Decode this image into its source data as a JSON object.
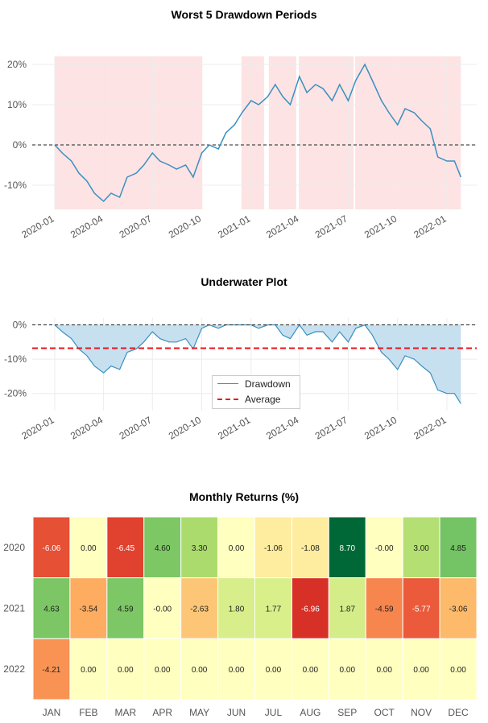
{
  "chart_data": [
    {
      "type": "line",
      "title": "Worst 5 Drawdown Periods",
      "ylim": [
        -16,
        22
      ],
      "yticks": [
        -10,
        0,
        10,
        20
      ],
      "ytick_labels": [
        "-10%",
        "0%",
        "10%",
        "20%"
      ],
      "xtick_labels": [
        "2020-01",
        "2020-04",
        "2020-07",
        "2020-10",
        "2021-01",
        "2021-04",
        "2021-07",
        "2021-10",
        "2022-01"
      ],
      "xticks": [
        "2020-01-01",
        "2020-04-01",
        "2020-07-01",
        "2020-10-01",
        "2021-01-01",
        "2021-04-01",
        "2021-07-01",
        "2021-10-01",
        "2022-01-01"
      ],
      "grid": true,
      "line_color": "#3a8fc1",
      "shade_color": "#fde3e3",
      "reference_line": 0,
      "drawdown_periods": [
        [
          "2020-01-01",
          "2020-10-02"
        ],
        [
          "2020-12-14",
          "2021-01-25"
        ],
        [
          "2021-02-03",
          "2021-03-26"
        ],
        [
          "2021-03-31",
          "2021-07-11"
        ],
        [
          "2021-07-14",
          "2022-01-27"
        ]
      ],
      "x": [
        "2020-01-01",
        "2020-01-15",
        "2020-02-01",
        "2020-02-15",
        "2020-03-01",
        "2020-03-15",
        "2020-04-01",
        "2020-04-15",
        "2020-05-01",
        "2020-05-15",
        "2020-06-01",
        "2020-06-15",
        "2020-07-01",
        "2020-07-15",
        "2020-08-01",
        "2020-08-15",
        "2020-09-01",
        "2020-09-15",
        "2020-10-01",
        "2020-10-15",
        "2020-11-01",
        "2020-11-15",
        "2020-12-01",
        "2020-12-15",
        "2021-01-01",
        "2021-01-15",
        "2021-02-01",
        "2021-02-15",
        "2021-03-01",
        "2021-03-15",
        "2021-04-01",
        "2021-04-15",
        "2021-05-01",
        "2021-05-15",
        "2021-06-01",
        "2021-06-15",
        "2021-07-01",
        "2021-07-15",
        "2021-08-01",
        "2021-08-15",
        "2021-09-01",
        "2021-09-15",
        "2021-10-01",
        "2021-10-15",
        "2021-11-01",
        "2021-11-15",
        "2021-12-01",
        "2021-12-15",
        "2022-01-01",
        "2022-01-15",
        "2022-01-27"
      ],
      "values": [
        0,
        -2,
        -4,
        -7,
        -9,
        -12,
        -14,
        -12,
        -13,
        -8,
        -7,
        -5,
        -2,
        -4,
        -5,
        -6,
        -5,
        -8,
        -2,
        0,
        -1,
        3,
        5,
        8,
        11,
        10,
        12,
        15,
        12,
        10,
        17,
        13,
        15,
        14,
        11,
        15,
        11,
        16,
        20,
        16,
        11,
        8,
        5,
        9,
        8,
        6,
        4,
        -3,
        -4,
        -4,
        -8
      ]
    },
    {
      "type": "area",
      "title": "Underwater Plot",
      "ylim": [
        -25,
        2
      ],
      "yticks": [
        -20,
        -10,
        0
      ],
      "ytick_labels": [
        "-20%",
        "-10%",
        "0%"
      ],
      "xtick_labels": [
        "2020-01",
        "2020-04",
        "2020-07",
        "2020-10",
        "2021-01",
        "2021-04",
        "2021-07",
        "2021-10",
        "2022-01"
      ],
      "xticks": [
        "2020-01-01",
        "2020-04-01",
        "2020-07-01",
        "2020-10-01",
        "2021-01-01",
        "2021-04-01",
        "2021-07-01",
        "2021-10-01",
        "2022-01-01"
      ],
      "grid": true,
      "legend_placement": "lower-center",
      "series": [
        {
          "name": "Drawdown",
          "color": "#3a8fc1",
          "fill": "#c6e0ef",
          "values": [
            0,
            -2,
            -4,
            -7,
            -9,
            -12,
            -14,
            -12,
            -13,
            -8,
            -7,
            -5,
            -2,
            -4,
            -5,
            -5,
            -4,
            -7,
            -1,
            0,
            -1,
            0,
            0,
            0,
            0,
            -1,
            0,
            0,
            -3,
            -4,
            0,
            -3,
            -2,
            -2,
            -5,
            -2,
            -5,
            -1,
            0,
            -3,
            -8,
            -10,
            -13,
            -9,
            -10,
            -12,
            -14,
            -19,
            -20,
            -20,
            -23
          ]
        },
        {
          "name": "Average",
          "color": "#e8141c",
          "value": -6.8
        }
      ],
      "x": [
        "2020-01-01",
        "2020-01-15",
        "2020-02-01",
        "2020-02-15",
        "2020-03-01",
        "2020-03-15",
        "2020-04-01",
        "2020-04-15",
        "2020-05-01",
        "2020-05-15",
        "2020-06-01",
        "2020-06-15",
        "2020-07-01",
        "2020-07-15",
        "2020-08-01",
        "2020-08-15",
        "2020-09-01",
        "2020-09-15",
        "2020-10-01",
        "2020-10-15",
        "2020-11-01",
        "2020-11-15",
        "2020-12-01",
        "2020-12-15",
        "2021-01-01",
        "2021-01-15",
        "2021-02-01",
        "2021-02-15",
        "2021-03-01",
        "2021-03-15",
        "2021-04-01",
        "2021-04-15",
        "2021-05-01",
        "2021-05-15",
        "2021-06-01",
        "2021-06-15",
        "2021-07-01",
        "2021-07-15",
        "2021-08-01",
        "2021-08-15",
        "2021-09-01",
        "2021-09-15",
        "2021-10-01",
        "2021-10-15",
        "2021-11-01",
        "2021-11-15",
        "2021-12-01",
        "2021-12-15",
        "2022-01-01",
        "2022-01-15",
        "2022-01-27"
      ]
    },
    {
      "type": "heatmap",
      "title": "Monthly Returns (%)",
      "colormap": "RdYlGn",
      "vlim": [
        -8.7,
        8.7
      ],
      "columns": [
        "JAN",
        "FEB",
        "MAR",
        "APR",
        "MAY",
        "JUN",
        "JUL",
        "AUG",
        "SEP",
        "OCT",
        "NOV",
        "DEC"
      ],
      "rows": [
        "2020",
        "2021",
        "2022"
      ],
      "values": [
        [
          "-6.06",
          "0.00",
          "-6.45",
          "4.60",
          "3.30",
          "0.00",
          "-1.06",
          "-1.08",
          "8.70",
          "-0.00",
          "3.00",
          "4.85"
        ],
        [
          "4.63",
          "-3.54",
          "4.59",
          "-0.00",
          "-2.63",
          "1.80",
          "1.77",
          "-6.96",
          "1.87",
          "-4.59",
          "-5.77",
          "-3.06"
        ],
        [
          "-4.21",
          "0.00",
          "0.00",
          "0.00",
          "0.00",
          "0.00",
          "0.00",
          "0.00",
          "0.00",
          "0.00",
          "0.00",
          "0.00"
        ]
      ]
    }
  ]
}
